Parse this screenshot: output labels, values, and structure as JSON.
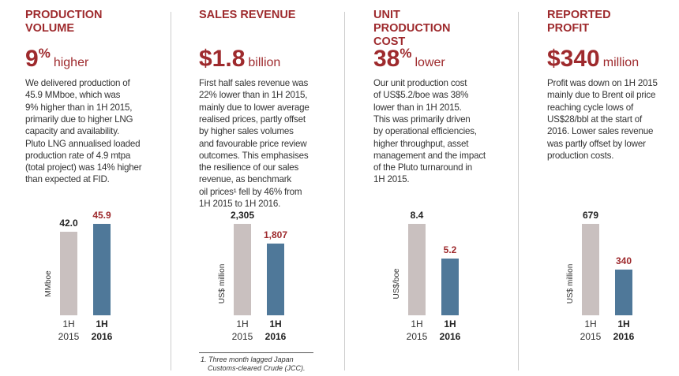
{
  "chart_data": [
    {
      "type": "bar",
      "title": "PRODUCTION VOLUME",
      "headline": "9",
      "headline_sup": "%",
      "headline_suffix": "higher",
      "text": [
        "We delivered production of",
        "45.9 MMboe, which was",
        "9% higher than in 1H 2015,",
        "primarily due to higher LNG",
        "capacity and availability.",
        "Pluto LNG annualised loaded",
        "production rate of 4.9 mtpa",
        "(total project) was 14% higher",
        "than expected at FID."
      ],
      "ylabel": "MMboe",
      "categories": [
        "1H 2015",
        "1H 2016"
      ],
      "values": [
        42.0,
        45.9
      ],
      "value_labels": [
        "42.0",
        "45.9"
      ],
      "colors": [
        "#c9c0bf",
        "#4f7899"
      ]
    },
    {
      "type": "bar",
      "title": "SALES REVENUE",
      "headline": "$1.8",
      "headline_suffix": "billion",
      "text": [
        "First half sales revenue was",
        "22% lower than in 1H 2015,",
        "mainly due to lower average",
        "realised prices, partly offset",
        "by higher sales volumes",
        "and favourable price review",
        "outcomes. This emphasises",
        "the resilience of our sales",
        "revenue, as benchmark",
        "oil prices¹ fell by 46% from",
        "1H 2015 to 1H 2016."
      ],
      "ylabel": "US$ million",
      "categories": [
        "1H 2015",
        "1H 2016"
      ],
      "values": [
        2305,
        1807
      ],
      "value_labels": [
        "2,305",
        "1,807"
      ],
      "colors": [
        "#c9c0bf",
        "#4f7899"
      ]
    },
    {
      "type": "bar",
      "title": "UNIT PRODUCTION COST",
      "headline": "38",
      "headline_sup": "%",
      "headline_suffix": "lower",
      "text": [
        "Our unit production cost",
        "of US$5.2/boe was 38%",
        "lower than in 1H 2015.",
        "This was primarily driven",
        "by operational efficiencies,",
        "higher throughput, asset",
        "management and the impact",
        "of the Pluto turnaround in",
        "1H 2015."
      ],
      "ylabel": "US$/boe",
      "categories": [
        "1H 2015",
        "1H 2016"
      ],
      "values": [
        8.4,
        5.2
      ],
      "colors": [
        "#c9c0bf",
        "#4f7899"
      ]
    },
    {
      "type": "bar",
      "title": "REPORTED PROFIT",
      "headline": "$340",
      "headline_suffix": "million",
      "text": [
        "Profit was down on 1H 2015",
        "mainly due to Brent oil price",
        "reaching cycle lows of",
        "US$28/bbl at the start of",
        "2016. Lower sales revenue",
        "was partly offset by lower",
        "production costs."
      ],
      "ylabel": "US$ million",
      "categories": [
        "1H 2015",
        "1H 2016"
      ],
      "values": [
        679,
        340
      ],
      "colors": [
        "#c9c0bf",
        "#4f7899"
      ]
    }
  ],
  "footnote": [
    "1. Three month lagged Japan",
    "Customs-cleared Crude (JCC)."
  ]
}
